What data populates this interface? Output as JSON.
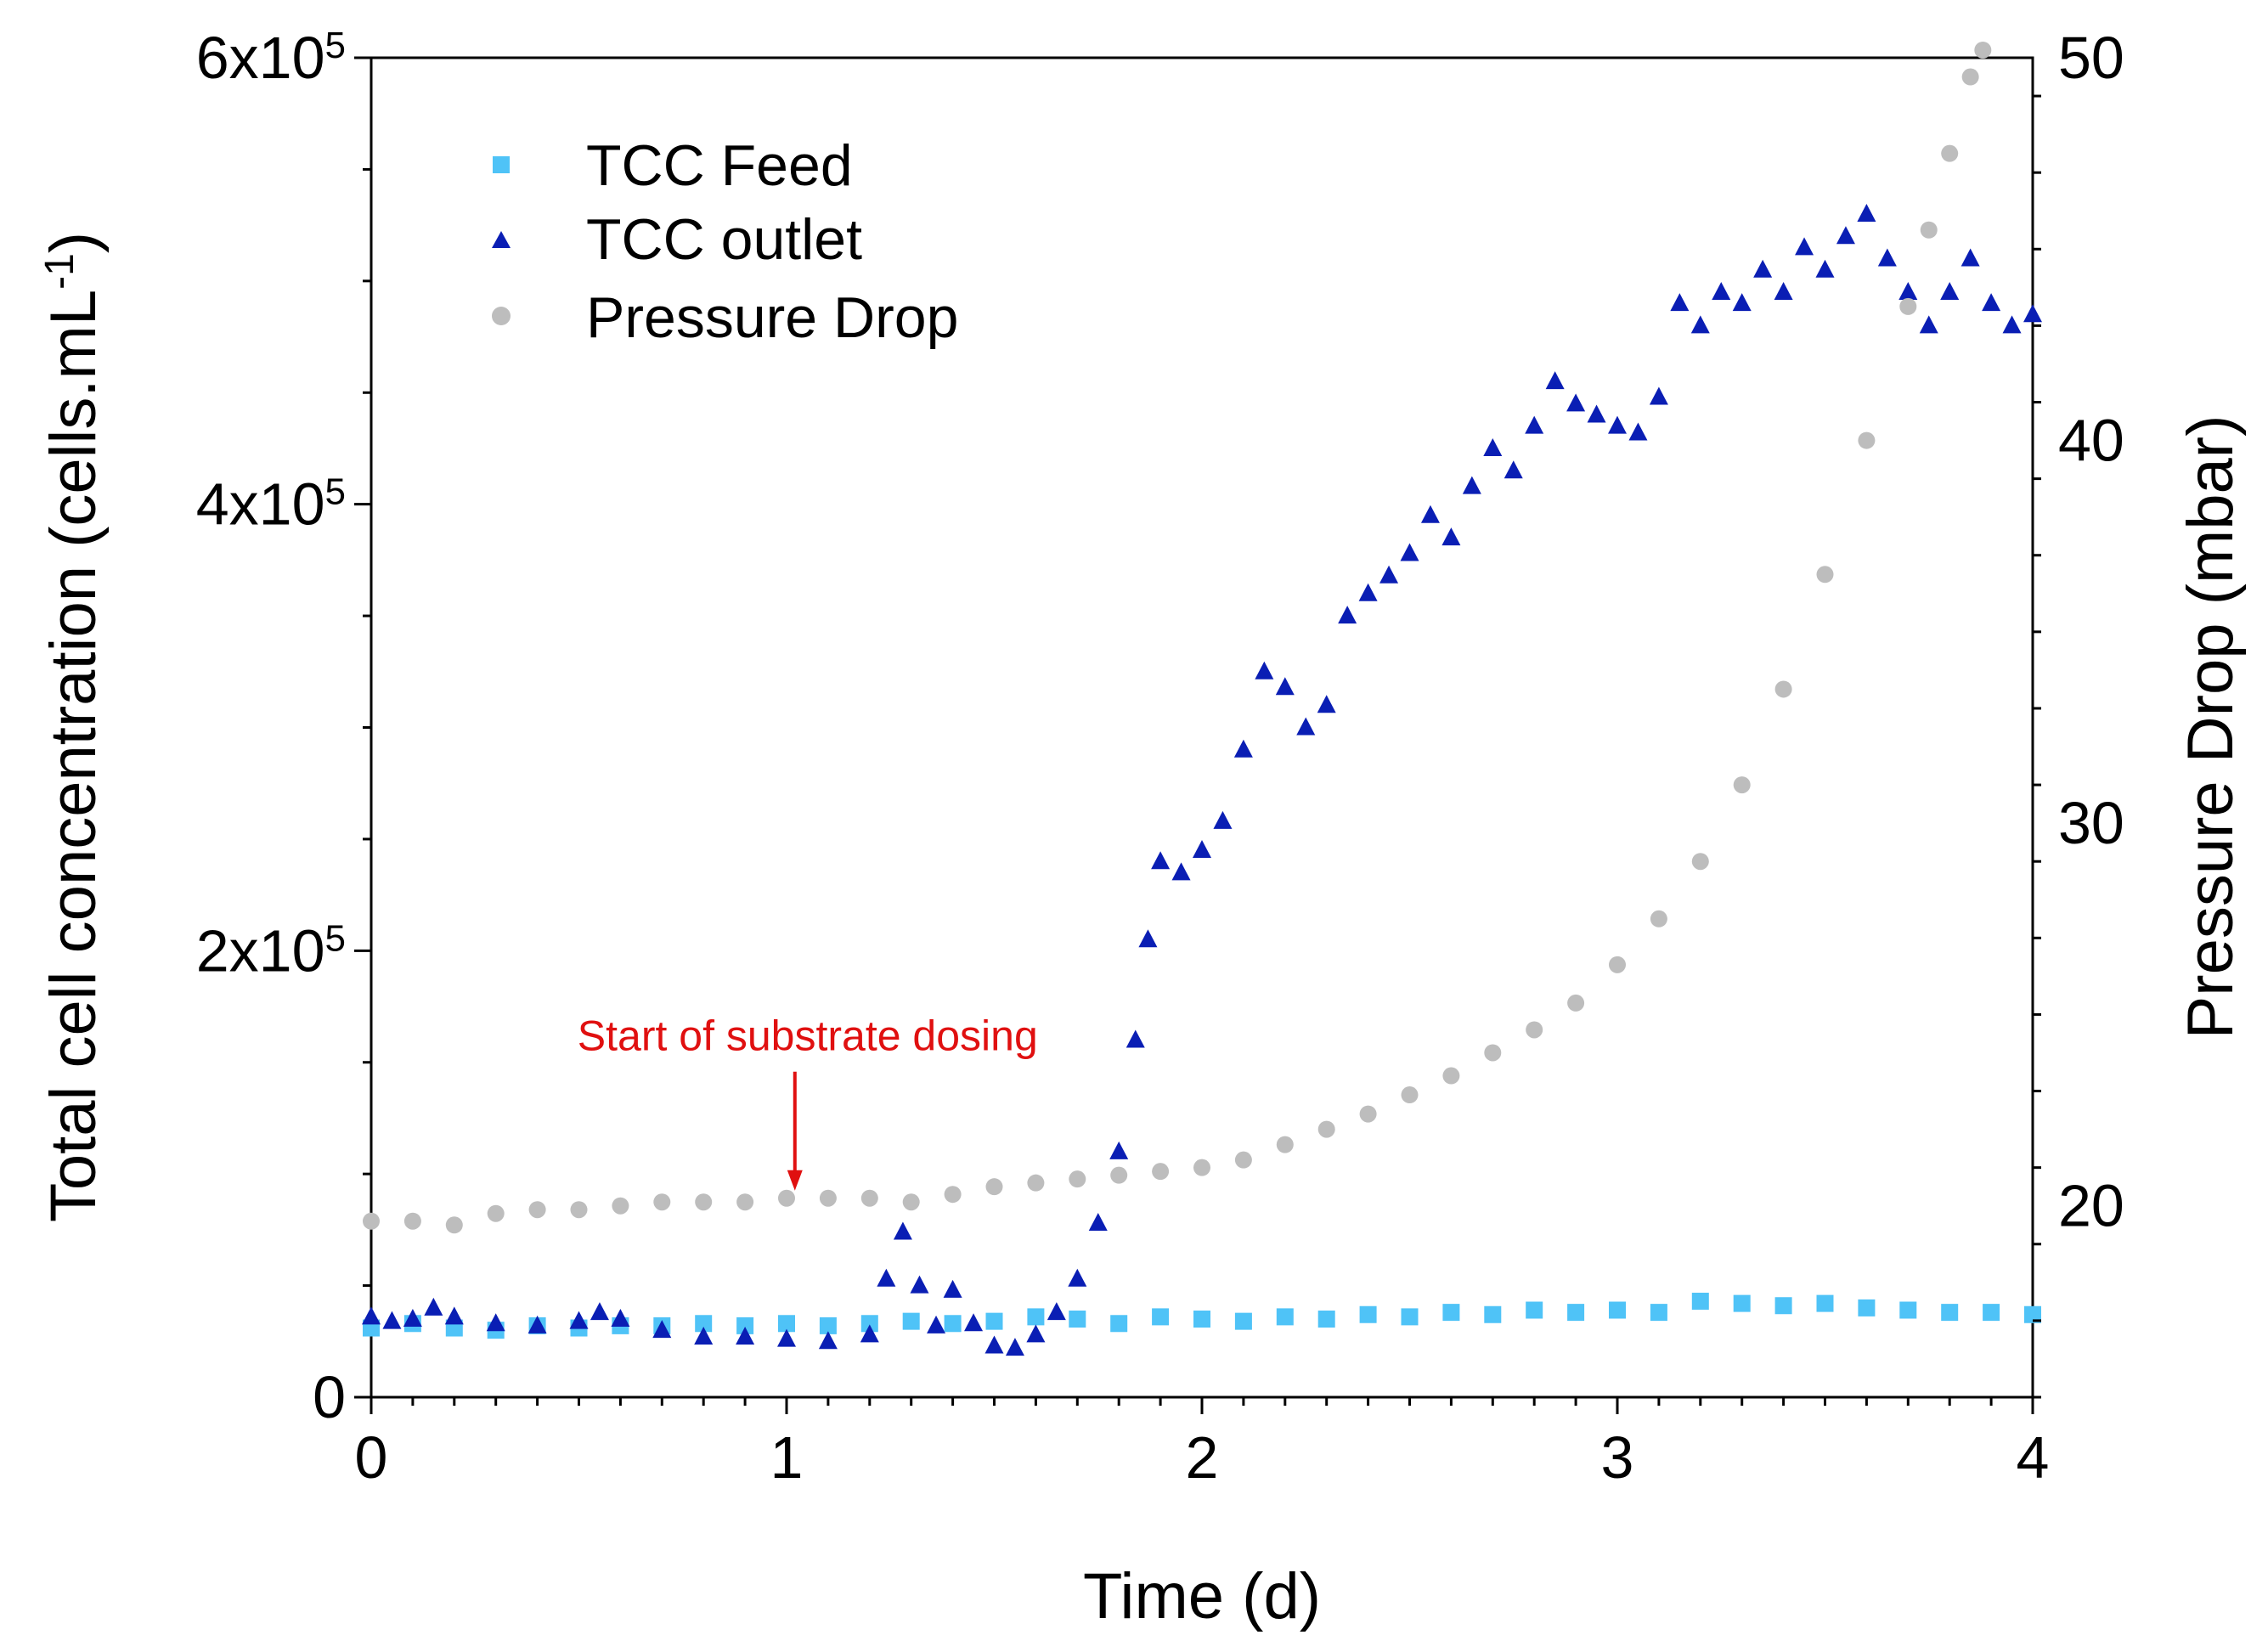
{
  "chart_data": {
    "type": "scatter",
    "title": "",
    "xlabel": "Time (d)",
    "ylabel_left": {
      "main": "Total cell concentration (cells.mL",
      "sup": "-1",
      "tail": ")"
    },
    "ylabel_right": "Pressure Drop (mbar)",
    "xlim": [
      0,
      4
    ],
    "ylim_left": [
      0,
      600000
    ],
    "ylim_right": [
      15,
      50
    ],
    "grid": false,
    "legend_position": "top-left",
    "x_ticks": [
      {
        "value": 0,
        "label": "0"
      },
      {
        "value": 1,
        "label": "1"
      },
      {
        "value": 2,
        "label": "2"
      },
      {
        "value": 3,
        "label": "3"
      },
      {
        "value": 4,
        "label": "4"
      }
    ],
    "y_ticks_left": [
      {
        "value": 0,
        "label": "0",
        "sup": ""
      },
      {
        "value": 200000,
        "label": "2x10",
        "sup": "5"
      },
      {
        "value": 400000,
        "label": "4x10",
        "sup": "5"
      },
      {
        "value": 600000,
        "label": "6x10",
        "sup": "5"
      }
    ],
    "y_ticks_right": [
      {
        "value": 20,
        "label": "20"
      },
      {
        "value": 30,
        "label": "30"
      },
      {
        "value": 40,
        "label": "40"
      },
      {
        "value": 50,
        "label": "50"
      }
    ],
    "series": [
      {
        "name": "TCC Feed",
        "axis": "left",
        "marker": "square",
        "color": "#4FC3F7",
        "points": [
          [
            0.0,
            31000
          ],
          [
            0.1,
            33000
          ],
          [
            0.2,
            31000
          ],
          [
            0.3,
            30000
          ],
          [
            0.4,
            32000
          ],
          [
            0.5,
            31000
          ],
          [
            0.6,
            32000
          ],
          [
            0.7,
            32000
          ],
          [
            0.8,
            33000
          ],
          [
            0.9,
            32000
          ],
          [
            1.0,
            33000
          ],
          [
            1.1,
            32000
          ],
          [
            1.2,
            33000
          ],
          [
            1.3,
            34000
          ],
          [
            1.4,
            33000
          ],
          [
            1.5,
            34000
          ],
          [
            1.6,
            36000
          ],
          [
            1.7,
            35000
          ],
          [
            1.8,
            33000
          ],
          [
            1.9,
            36000
          ],
          [
            2.0,
            35000
          ],
          [
            2.1,
            34000
          ],
          [
            2.2,
            36000
          ],
          [
            2.3,
            35000
          ],
          [
            2.4,
            37000
          ],
          [
            2.5,
            36000
          ],
          [
            2.6,
            38000
          ],
          [
            2.7,
            37000
          ],
          [
            2.8,
            39000
          ],
          [
            2.9,
            38000
          ],
          [
            3.0,
            39000
          ],
          [
            3.1,
            38000
          ],
          [
            3.2,
            43000
          ],
          [
            3.3,
            42000
          ],
          [
            3.4,
            41000
          ],
          [
            3.5,
            42000
          ],
          [
            3.6,
            40000
          ],
          [
            3.7,
            39000
          ],
          [
            3.8,
            38000
          ],
          [
            3.9,
            38000
          ],
          [
            4.0,
            37000
          ]
        ]
      },
      {
        "name": "TCC outlet",
        "axis": "left",
        "marker": "triangle",
        "color": "#0A1EB4",
        "points": [
          [
            0.0,
            36000
          ],
          [
            0.05,
            34000
          ],
          [
            0.1,
            35000
          ],
          [
            0.15,
            40000
          ],
          [
            0.2,
            36000
          ],
          [
            0.3,
            33000
          ],
          [
            0.4,
            32000
          ],
          [
            0.5,
            34000
          ],
          [
            0.55,
            38000
          ],
          [
            0.6,
            35000
          ],
          [
            0.7,
            30000
          ],
          [
            0.8,
            27000
          ],
          [
            0.9,
            27000
          ],
          [
            1.0,
            26000
          ],
          [
            1.1,
            25000
          ],
          [
            1.2,
            28000
          ],
          [
            1.24,
            53000
          ],
          [
            1.28,
            74000
          ],
          [
            1.32,
            50000
          ],
          [
            1.36,
            32000
          ],
          [
            1.4,
            48000
          ],
          [
            1.45,
            33000
          ],
          [
            1.5,
            23000
          ],
          [
            1.55,
            22000
          ],
          [
            1.6,
            28000
          ],
          [
            1.65,
            38000
          ],
          [
            1.7,
            53000
          ],
          [
            1.75,
            78000
          ],
          [
            1.8,
            110000
          ],
          [
            1.84,
            160000
          ],
          [
            1.87,
            205000
          ],
          [
            1.9,
            240000
          ],
          [
            1.95,
            235000
          ],
          [
            2.0,
            245000
          ],
          [
            2.05,
            258000
          ],
          [
            2.1,
            290000
          ],
          [
            2.15,
            325000
          ],
          [
            2.2,
            318000
          ],
          [
            2.25,
            300000
          ],
          [
            2.3,
            310000
          ],
          [
            2.35,
            350000
          ],
          [
            2.4,
            360000
          ],
          [
            2.45,
            368000
          ],
          [
            2.5,
            378000
          ],
          [
            2.55,
            395000
          ],
          [
            2.6,
            385000
          ],
          [
            2.65,
            408000
          ],
          [
            2.7,
            425000
          ],
          [
            2.75,
            415000
          ],
          [
            2.8,
            435000
          ],
          [
            2.85,
            455000
          ],
          [
            2.9,
            445000
          ],
          [
            2.95,
            440000
          ],
          [
            3.0,
            435000
          ],
          [
            3.05,
            432000
          ],
          [
            3.1,
            448000
          ],
          [
            3.15,
            490000
          ],
          [
            3.2,
            480000
          ],
          [
            3.25,
            495000
          ],
          [
            3.3,
            490000
          ],
          [
            3.35,
            505000
          ],
          [
            3.4,
            495000
          ],
          [
            3.45,
            515000
          ],
          [
            3.5,
            505000
          ],
          [
            3.55,
            520000
          ],
          [
            3.6,
            530000
          ],
          [
            3.65,
            510000
          ],
          [
            3.7,
            495000
          ],
          [
            3.75,
            480000
          ],
          [
            3.8,
            495000
          ],
          [
            3.85,
            510000
          ],
          [
            3.9,
            490000
          ],
          [
            3.95,
            480000
          ],
          [
            4.0,
            485000
          ]
        ]
      },
      {
        "name": "Pressure Drop",
        "axis": "right",
        "marker": "circle",
        "color": "#BDBDBD",
        "points": [
          [
            0.0,
            19.6
          ],
          [
            0.1,
            19.6
          ],
          [
            0.2,
            19.5
          ],
          [
            0.3,
            19.8
          ],
          [
            0.4,
            19.9
          ],
          [
            0.5,
            19.9
          ],
          [
            0.6,
            20.0
          ],
          [
            0.7,
            20.1
          ],
          [
            0.8,
            20.1
          ],
          [
            0.9,
            20.1
          ],
          [
            1.0,
            20.2
          ],
          [
            1.1,
            20.2
          ],
          [
            1.2,
            20.2
          ],
          [
            1.3,
            20.1
          ],
          [
            1.4,
            20.3
          ],
          [
            1.5,
            20.5
          ],
          [
            1.6,
            20.6
          ],
          [
            1.7,
            20.7
          ],
          [
            1.8,
            20.8
          ],
          [
            1.9,
            20.9
          ],
          [
            2.0,
            21.0
          ],
          [
            2.1,
            21.2
          ],
          [
            2.2,
            21.6
          ],
          [
            2.3,
            22.0
          ],
          [
            2.4,
            22.4
          ],
          [
            2.5,
            22.9
          ],
          [
            2.6,
            23.4
          ],
          [
            2.7,
            24.0
          ],
          [
            2.8,
            24.6
          ],
          [
            2.9,
            25.3
          ],
          [
            3.0,
            26.3
          ],
          [
            3.1,
            27.5
          ],
          [
            3.2,
            29.0
          ],
          [
            3.3,
            31.0
          ],
          [
            3.4,
            33.5
          ],
          [
            3.5,
            36.5
          ],
          [
            3.6,
            40.0
          ],
          [
            3.7,
            43.5
          ],
          [
            3.75,
            45.5
          ],
          [
            3.8,
            47.5
          ],
          [
            3.85,
            49.5
          ],
          [
            3.88,
            50.2
          ]
        ]
      }
    ],
    "annotations": [
      {
        "text": "Start of substrate dosing",
        "x": 1.02,
        "y_right": 20.4,
        "color": "#E01010"
      }
    ]
  }
}
